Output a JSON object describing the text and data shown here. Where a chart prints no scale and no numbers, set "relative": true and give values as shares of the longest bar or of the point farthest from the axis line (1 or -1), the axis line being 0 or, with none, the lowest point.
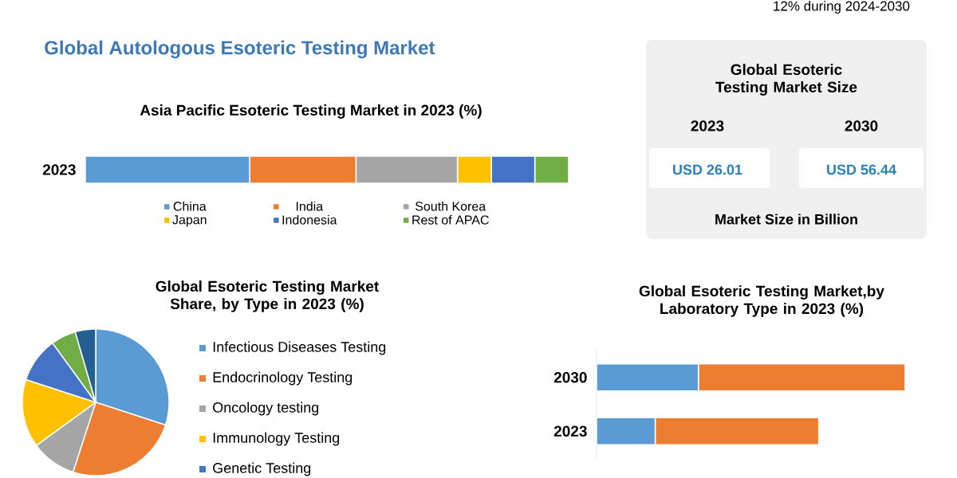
{
  "chart_data": [
    {
      "type": "other",
      "title": "Global Autologous Esoteric Testing Market",
      "annotations": [
        "12% during 2024-2030"
      ]
    },
    {
      "type": "bar",
      "title": "Asia Pacific Esoteric Testing Market in 2023 (%)",
      "orientation": "horizontal",
      "stacked": true,
      "relative": true,
      "legend": "bottom",
      "categories": [
        "2023"
      ],
      "series": [
        {
          "name": "China",
          "color": "#5b9bd5",
          "values": [
            0.34
          ]
        },
        {
          "name": "India",
          "color": "#ed7d31",
          "values": [
            0.22
          ]
        },
        {
          "name": "South Korea",
          "color": "#a5a5a5",
          "values": [
            0.21
          ]
        },
        {
          "name": "Japan",
          "color": "#ffc000",
          "values": [
            0.07
          ]
        },
        {
          "name": "Indonesia",
          "color": "#4472c4",
          "values": [
            0.09
          ]
        },
        {
          "name": "Rest of APAC",
          "color": "#70ad47",
          "values": [
            0.07
          ]
        }
      ]
    },
    {
      "type": "other",
      "title": "Global Esoteric Testing Market Size",
      "categories": [
        "2023",
        "2030"
      ],
      "value_labels": [
        "USD 26.01",
        "USD 56.44"
      ],
      "annotations": [
        "Market Size in Billion"
      ]
    },
    {
      "type": "pie",
      "title": "Global Esoteric Testing Market Share, by Type in 2023  (%)",
      "legend": "right",
      "categories": [
        "Infectious Diseases Testing",
        "Endocrinology Testing",
        "Oncology testing",
        "Immunology Testing",
        "Genetic Testing",
        null,
        null
      ],
      "values": [
        30,
        25,
        10,
        15,
        10,
        5.5,
        4.5
      ],
      "colors": [
        "#5b9bd5",
        "#ed7d31",
        "#a5a5a5",
        "#ffc000",
        "#4472c4",
        "#70ad47",
        "#255e91"
      ]
    },
    {
      "type": "bar",
      "title": "Global Esoteric Testing Market,by Laboratory Type in 2023 (%)",
      "orientation": "horizontal",
      "stacked": true,
      "relative": true,
      "categories": [
        "2030",
        "2023"
      ],
      "series": [
        {
          "color": "#5b9bd5",
          "values": [
            0.33,
            0.19
          ]
        },
        {
          "color": "#ed7d31",
          "values": [
            0.67,
            0.53
          ]
        }
      ]
    }
  ]
}
